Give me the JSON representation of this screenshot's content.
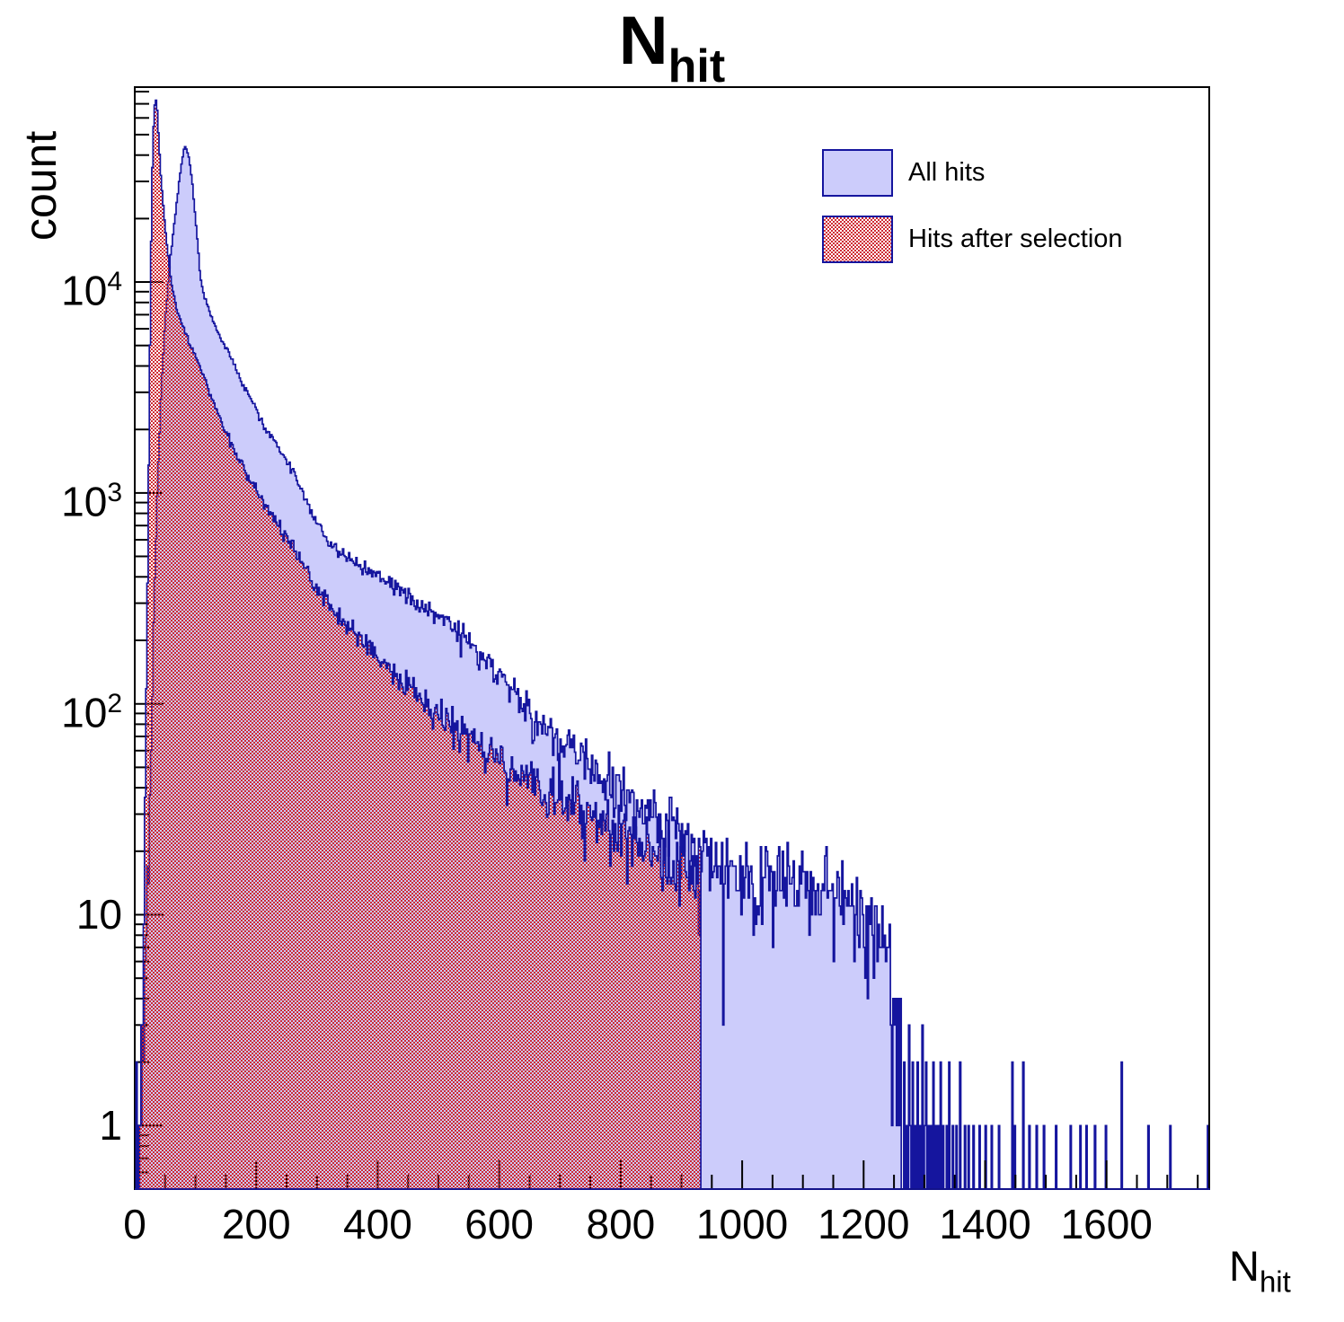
{
  "title": {
    "text": "N",
    "subscript": "hit"
  },
  "axes": {
    "y": {
      "label": "count",
      "scale": "log",
      "tick_labels": [
        {
          "base": "1",
          "exp": "",
          "value": 1
        },
        {
          "base": "10",
          "exp": "",
          "value": 10
        },
        {
          "base": "10",
          "exp": "2",
          "value": 100
        },
        {
          "base": "10",
          "exp": "3",
          "value": 1000
        },
        {
          "base": "10",
          "exp": "4",
          "value": 10000
        }
      ]
    },
    "x": {
      "label": "N",
      "label_subscript": "hit",
      "major_ticks": [
        0,
        200,
        400,
        600,
        800,
        1000,
        1200,
        1400,
        1600
      ],
      "minor_step": 50
    }
  },
  "legend": {
    "items": [
      {
        "label": "All hits",
        "swatch": "solid"
      },
      {
        "label": "Hits after selection",
        "swatch": "hatched"
      }
    ]
  },
  "colors": {
    "histogram_line": "#15159e",
    "all_hits_fill": "#ccccfb",
    "selection_pattern": "#cf2a33",
    "axis": "#000000",
    "text": "#000000",
    "background": "#ffffff"
  },
  "chart_data": {
    "type": "histogram",
    "y_scale": "log",
    "bin_width": 2,
    "x_range": [
      0,
      1769
    ],
    "y_range": [
      0.5,
      84000
    ],
    "noise": {
      "model": "poisson",
      "seed": 20240917
    },
    "series": [
      {
        "name": "All hits",
        "style": "solid_fill",
        "end_of_fill": 1262,
        "backbone": [
          [
            0,
            0.4
          ],
          [
            8,
            0.8
          ],
          [
            14,
            2
          ],
          [
            20,
            8
          ],
          [
            26,
            45
          ],
          [
            32,
            300
          ],
          [
            38,
            1200
          ],
          [
            44,
            3200
          ],
          [
            50,
            6500
          ],
          [
            58,
            12500
          ],
          [
            64,
            18000
          ],
          [
            70,
            25000
          ],
          [
            76,
            35000
          ],
          [
            82,
            44300
          ],
          [
            86,
            42500
          ],
          [
            90,
            38000
          ],
          [
            95,
            29000
          ],
          [
            100,
            20000
          ],
          [
            104,
            15000
          ],
          [
            108,
            10500
          ],
          [
            114,
            8600
          ],
          [
            122,
            7400
          ],
          [
            131,
            6300
          ],
          [
            140,
            5500
          ],
          [
            148,
            5000
          ],
          [
            157,
            4500
          ],
          [
            166,
            3900
          ],
          [
            175,
            3400
          ],
          [
            185,
            3000
          ],
          [
            195,
            2600
          ],
          [
            205,
            2300
          ],
          [
            215,
            2050
          ],
          [
            225,
            1850
          ],
          [
            235,
            1650
          ],
          [
            245,
            1500
          ],
          [
            255,
            1350
          ],
          [
            265,
            1200
          ],
          [
            275,
            1050
          ],
          [
            284,
            900
          ],
          [
            293,
            780
          ],
          [
            304,
            700
          ],
          [
            315,
            620
          ],
          [
            327,
            570
          ],
          [
            340,
            500
          ],
          [
            360,
            470
          ],
          [
            380,
            440
          ],
          [
            400,
            420
          ],
          [
            420,
            380
          ],
          [
            440,
            340
          ],
          [
            460,
            310
          ],
          [
            480,
            280
          ],
          [
            500,
            258
          ],
          [
            516,
            245
          ],
          [
            538,
            210
          ],
          [
            560,
            180
          ],
          [
            580,
            158
          ],
          [
            600,
            138
          ],
          [
            625,
            112
          ],
          [
            650,
            90
          ],
          [
            675,
            77
          ],
          [
            700,
            66
          ],
          [
            720,
            59
          ],
          [
            738,
            54
          ],
          [
            760,
            47
          ],
          [
            780,
            42
          ],
          [
            800,
            38
          ],
          [
            820,
            34
          ],
          [
            840,
            31
          ],
          [
            860,
            28
          ],
          [
            880,
            25
          ],
          [
            900,
            23
          ],
          [
            925,
            20
          ],
          [
            950,
            17
          ],
          [
            975,
            16.5
          ],
          [
            1000,
            16
          ],
          [
            1050,
            15
          ],
          [
            1100,
            14
          ],
          [
            1150,
            13
          ],
          [
            1180,
            12
          ],
          [
            1200,
            10
          ],
          [
            1220,
            8
          ],
          [
            1235,
            6
          ],
          [
            1250,
            4
          ],
          [
            1258,
            3
          ],
          [
            1262,
            2
          ]
        ],
        "tail_spikes": [
          [
            1266,
            2
          ],
          [
            1270,
            1
          ],
          [
            1274,
            3
          ],
          [
            1277,
            1
          ],
          [
            1281,
            2
          ],
          [
            1285,
            1
          ],
          [
            1288,
            2
          ],
          [
            1292,
            1
          ],
          [
            1296,
            3
          ],
          [
            1300,
            1
          ],
          [
            1303,
            2
          ],
          [
            1307,
            1
          ],
          [
            1311,
            1
          ],
          [
            1315,
            2
          ],
          [
            1319,
            1
          ],
          [
            1323,
            1
          ],
          [
            1327,
            2
          ],
          [
            1331,
            1
          ],
          [
            1336,
            1
          ],
          [
            1341,
            2
          ],
          [
            1347,
            1
          ],
          [
            1353,
            1
          ],
          [
            1359,
            2
          ],
          [
            1366,
            1
          ],
          [
            1373,
            1
          ],
          [
            1381,
            1
          ],
          [
            1390,
            1
          ],
          [
            1400,
            1
          ],
          [
            1411,
            1
          ],
          [
            1422,
            1
          ],
          [
            1444,
            2
          ],
          [
            1449,
            1
          ],
          [
            1462,
            2
          ],
          [
            1472,
            1
          ],
          [
            1484,
            1
          ],
          [
            1497,
            1
          ],
          [
            1516,
            1
          ],
          [
            1540,
            1
          ],
          [
            1556,
            1
          ],
          [
            1566,
            1
          ],
          [
            1581,
            1
          ],
          [
            1598,
            1
          ],
          [
            1624,
            2
          ],
          [
            1668,
            1
          ],
          [
            1705,
            1
          ],
          [
            1766,
            1
          ]
        ]
      },
      {
        "name": "Hits after selection",
        "style": "red_checker",
        "cutoff": 932,
        "backbone": [
          [
            0,
            0.4
          ],
          [
            6,
            0.8
          ],
          [
            10,
            2
          ],
          [
            14,
            8
          ],
          [
            18,
            60
          ],
          [
            22,
            700
          ],
          [
            25,
            5000
          ],
          [
            28,
            28000
          ],
          [
            31,
            55000
          ],
          [
            34,
            77000
          ],
          [
            37,
            65000
          ],
          [
            40,
            45000
          ],
          [
            43,
            32000
          ],
          [
            46,
            25000
          ],
          [
            50,
            18000
          ],
          [
            56,
            12500
          ],
          [
            62,
            9300
          ],
          [
            70,
            7300
          ],
          [
            80,
            6000
          ],
          [
            90,
            5100
          ],
          [
            100,
            4500
          ],
          [
            112,
            3700
          ],
          [
            125,
            2900
          ],
          [
            137,
            2400
          ],
          [
            150,
            1950
          ],
          [
            162,
            1650
          ],
          [
            175,
            1380
          ],
          [
            187,
            1180
          ],
          [
            200,
            1020
          ],
          [
            215,
            880
          ],
          [
            230,
            760
          ],
          [
            245,
            655
          ],
          [
            260,
            560
          ],
          [
            275,
            475
          ],
          [
            290,
            400
          ],
          [
            305,
            345
          ],
          [
            320,
            300
          ],
          [
            335,
            265
          ],
          [
            350,
            235
          ],
          [
            365,
            212
          ],
          [
            380,
            190
          ],
          [
            395,
            170
          ],
          [
            410,
            155
          ],
          [
            425,
            140
          ],
          [
            440,
            128
          ],
          [
            455,
            117
          ],
          [
            470,
            107
          ],
          [
            485,
            98
          ],
          [
            500,
            90
          ],
          [
            520,
            81
          ],
          [
            540,
            73
          ],
          [
            560,
            66
          ],
          [
            580,
            60
          ],
          [
            600,
            55
          ],
          [
            620,
            50
          ],
          [
            640,
            46
          ],
          [
            660,
            42
          ],
          [
            680,
            39
          ],
          [
            700,
            36
          ],
          [
            720,
            33
          ],
          [
            740,
            31
          ],
          [
            760,
            29
          ],
          [
            780,
            27
          ],
          [
            800,
            25
          ],
          [
            820,
            23
          ],
          [
            840,
            21.5
          ],
          [
            860,
            20
          ],
          [
            880,
            18.5
          ],
          [
            900,
            17
          ],
          [
            915,
            16
          ],
          [
            930,
            15
          ]
        ]
      }
    ]
  }
}
